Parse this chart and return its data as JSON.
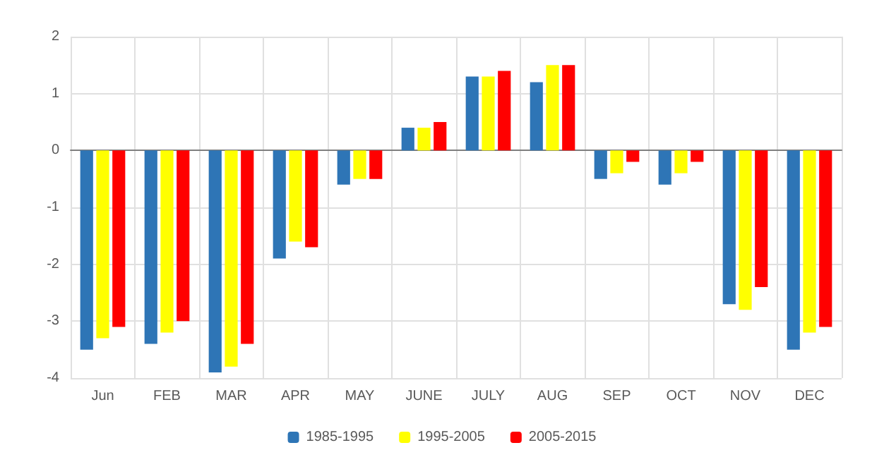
{
  "chart_data": {
    "type": "bar",
    "categories": [
      "Jun",
      "FEB",
      "MAR",
      "APR",
      "MAY",
      "JUNE",
      "JULY",
      "AUG",
      "SEP",
      "OCT",
      "NOV",
      "DEC"
    ],
    "series": [
      {
        "name": "1985-1995",
        "color": "#2e75b6",
        "values": [
          -3.5,
          -3.4,
          -3.9,
          -1.9,
          -0.6,
          0.4,
          1.3,
          1.2,
          -0.5,
          -0.6,
          -2.7,
          -3.5
        ]
      },
      {
        "name": "1995-2005",
        "color": "#ffff00",
        "values": [
          -3.3,
          -3.2,
          -3.8,
          -1.6,
          -0.5,
          0.4,
          1.3,
          1.5,
          -0.4,
          -0.4,
          -2.8,
          -3.2
        ]
      },
      {
        "name": "2005-2015",
        "color": "#ff0000",
        "values": [
          -3.1,
          -3.0,
          -3.4,
          -1.7,
          -0.5,
          0.5,
          1.4,
          1.5,
          -0.2,
          -0.2,
          -2.4,
          -3.1
        ]
      }
    ],
    "ylim": [
      -4,
      2
    ],
    "yticks": [
      -4,
      -3,
      -2,
      -1,
      0,
      1,
      2
    ],
    "grid": true,
    "legend": "bottom"
  }
}
